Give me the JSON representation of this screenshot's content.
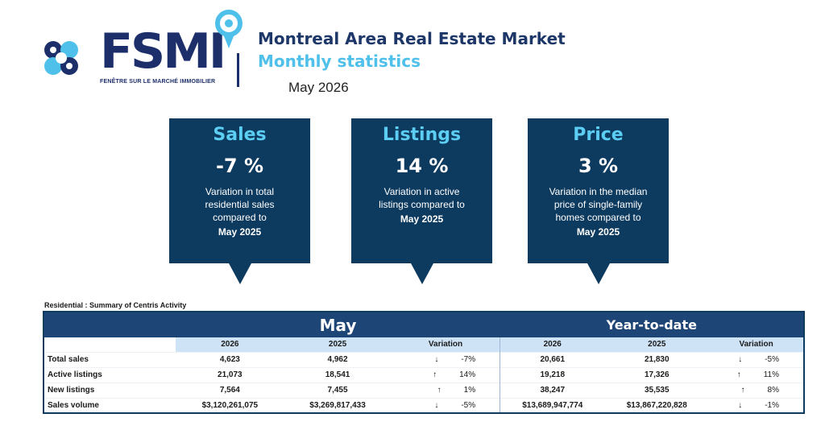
{
  "brand": {
    "logo_text": "FSMI",
    "tagline": "FENÊTRE SUR LE MARCHÉ IMMOBILIER",
    "colors": {
      "navy": "#1d2f6b",
      "cyan": "#4ec0e9",
      "box": "#0d3a5f"
    }
  },
  "header": {
    "title": "Montreal Area Real Estate Market",
    "subtitle": "Monthly statistics",
    "period": "May 2026"
  },
  "kpis": {
    "sales": {
      "title": "Sales",
      "value": "-7 %",
      "desc": "Variation in total residential sales compared to",
      "ref": "May 2025"
    },
    "listings": {
      "title": "Listings",
      "value": "14 %",
      "desc": "Variation in active listings compared to",
      "ref": "May 2025"
    },
    "price": {
      "title": "Price",
      "value": "3 %",
      "desc": "Variation in the median price of single-family homes compared to",
      "ref": "May 2025"
    }
  },
  "table": {
    "caption": "Residential : Summary of Centris Activity",
    "band_may": "May",
    "band_ytd": "Year-to-date",
    "col_2026": "2026",
    "col_2025": "2025",
    "col_var": "Variation",
    "rows": [
      {
        "label": "Total sales",
        "may_2026": "4,623",
        "may_2025": "4,962",
        "may_arrow": "↓",
        "may_var": "-7%",
        "ytd_2026": "20,661",
        "ytd_2025": "21,830",
        "ytd_arrow": "↓",
        "ytd_var": "-5%"
      },
      {
        "label": "Active listings",
        "may_2026": "21,073",
        "may_2025": "18,541",
        "may_arrow": "↑",
        "may_var": "14%",
        "ytd_2026": "19,218",
        "ytd_2025": "17,326",
        "ytd_arrow": "↑",
        "ytd_var": "11%"
      },
      {
        "label": "New listings",
        "may_2026": "7,564",
        "may_2025": "7,455",
        "may_arrow": "↑",
        "may_var": "1%",
        "ytd_2026": "38,247",
        "ytd_2025": "35,535",
        "ytd_arrow": "↑",
        "ytd_var": "8%"
      },
      {
        "label": "Sales volume",
        "may_2026": "$3,120,261,075",
        "may_2025": "$3,269,817,433",
        "may_arrow": "↓",
        "may_var": "-5%",
        "ytd_2026": "$13,689,947,774",
        "ytd_2025": "$13,867,220,828",
        "ytd_arrow": "↓",
        "ytd_var": "-1%"
      }
    ]
  }
}
